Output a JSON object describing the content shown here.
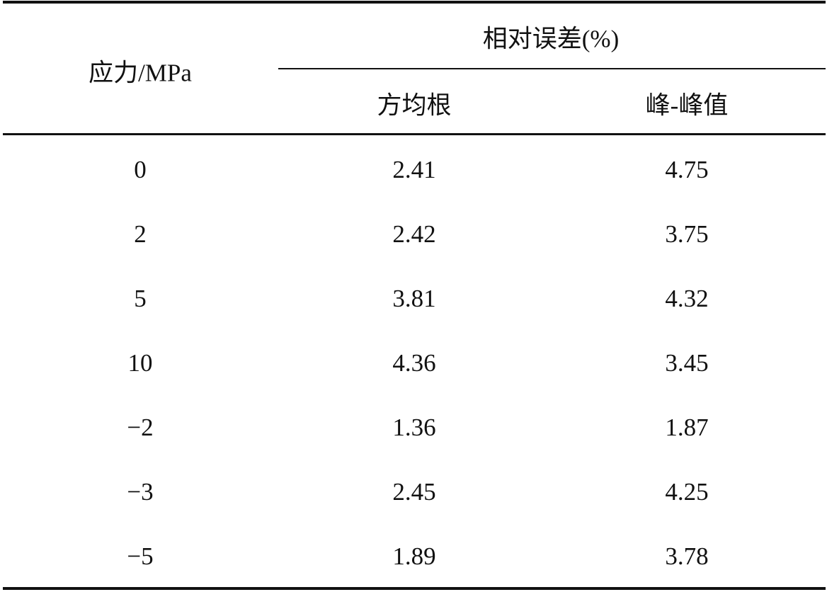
{
  "table": {
    "header": {
      "stress": "应力/MPa",
      "group": "相对误差(%)",
      "columns": [
        "方均根",
        "峰-峰值"
      ]
    },
    "rows": [
      [
        "0",
        "2.41",
        "4.75"
      ],
      [
        "2",
        "2.42",
        "3.75"
      ],
      [
        "5",
        "3.81",
        "4.32"
      ],
      [
        "10",
        "4.36",
        "3.45"
      ],
      [
        "−2",
        "1.36",
        "1.87"
      ],
      [
        "−3",
        "2.45",
        "4.25"
      ],
      [
        "−5",
        "1.89",
        "3.78"
      ]
    ]
  }
}
